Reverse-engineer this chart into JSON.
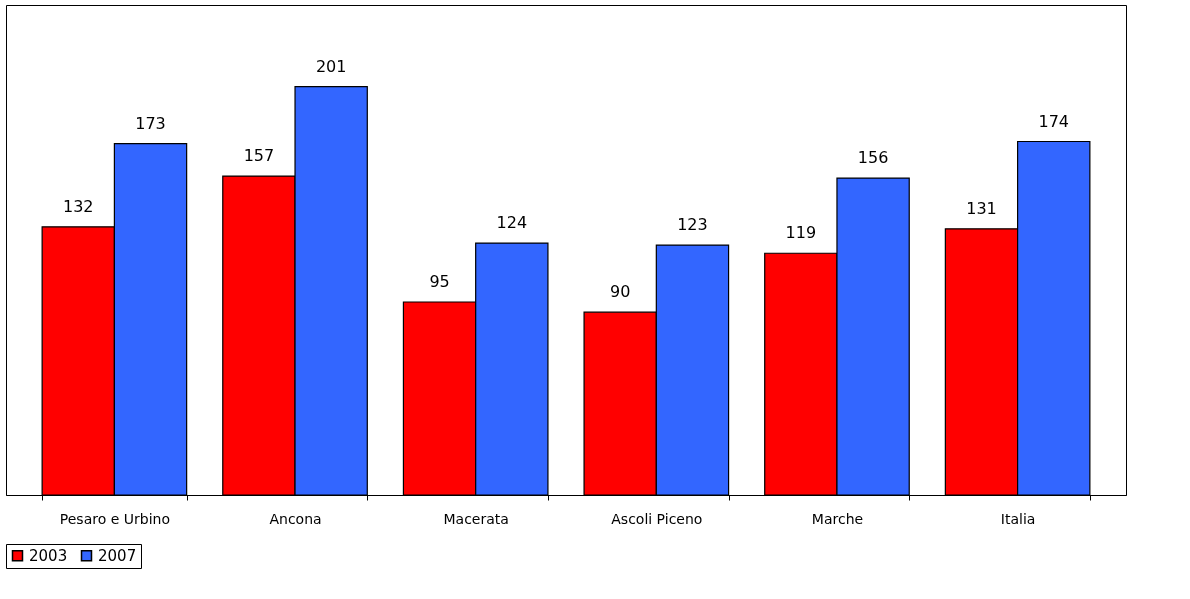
{
  "chart_data": {
    "type": "bar",
    "categories": [
      "Pesaro e Urbino",
      "Ancona",
      "Macerata",
      "Ascoli Piceno",
      "Marche",
      "Italia"
    ],
    "series": [
      {
        "name": "2003",
        "color": "#ff0000",
        "values": [
          132,
          157,
          95,
          90,
          119,
          131
        ]
      },
      {
        "name": "2007",
        "color": "#3366ff",
        "values": [
          173,
          201,
          124,
          123,
          156,
          174
        ]
      }
    ],
    "data_labels": true,
    "legend": "bottom",
    "grid": false
  }
}
